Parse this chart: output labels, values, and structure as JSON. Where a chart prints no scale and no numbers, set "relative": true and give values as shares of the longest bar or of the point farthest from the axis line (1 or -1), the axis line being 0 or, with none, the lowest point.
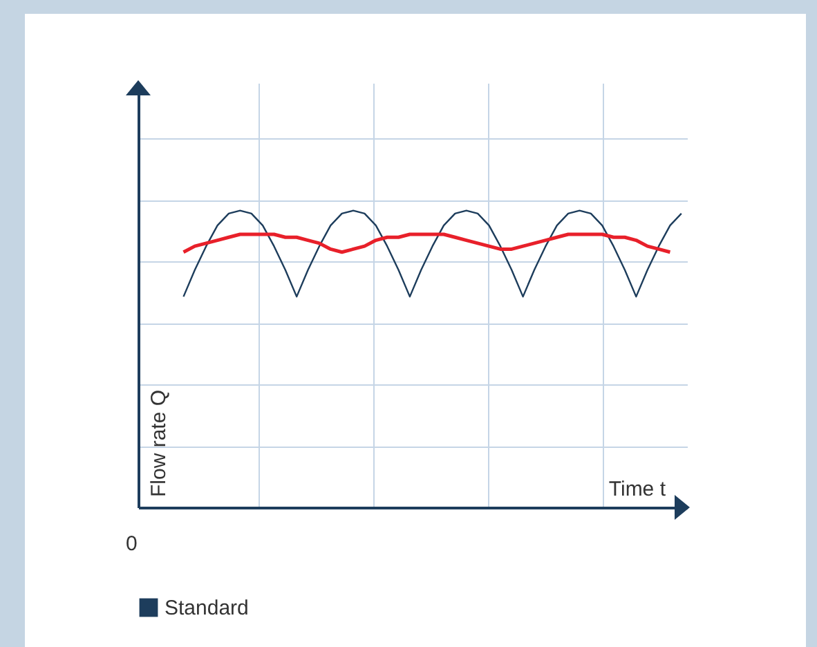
{
  "chart_data": {
    "type": "line",
    "relative": true,
    "xlabel": "Time t",
    "ylabel": "Flow rate Q",
    "annotations": [
      "0"
    ],
    "grid": true,
    "legend": "bottom left",
    "marker": "none",
    "categories": [
      null,
      null,
      null,
      null,
      null,
      null,
      null,
      null,
      null,
      null,
      null,
      null,
      null,
      null,
      null,
      null,
      null,
      null,
      null,
      null,
      null,
      null,
      null,
      null,
      null,
      null,
      null,
      null,
      null,
      null,
      null,
      null,
      null,
      null,
      null,
      null,
      null,
      null,
      null,
      null,
      null,
      null,
      null,
      null,
      null
    ],
    "series": [
      {
        "name": "Standard",
        "color": "#1d3d5c",
        "values": [
          0.71,
          0.8,
          0.88,
          0.95,
          0.99,
          1.0,
          0.99,
          0.95,
          0.88,
          0.8,
          0.71,
          0.8,
          0.88,
          0.95,
          0.99,
          1.0,
          0.99,
          0.95,
          0.88,
          0.8,
          0.71,
          0.8,
          0.88,
          0.95,
          0.99,
          1.0,
          0.99,
          0.95,
          0.88,
          0.8,
          0.71,
          0.8,
          0.88,
          0.95,
          0.99,
          1.0,
          0.99,
          0.95,
          0.88,
          0.8,
          0.71,
          0.8,
          0.88,
          0.95,
          0.99
        ]
      },
      {
        "color": "#e8202a",
        "values": [
          0.86,
          0.88,
          0.89,
          0.9,
          0.91,
          0.92,
          0.92,
          0.92,
          0.92,
          0.91,
          0.91,
          0.9,
          0.89,
          0.87,
          0.86,
          0.87,
          0.88,
          0.9,
          0.91,
          0.91,
          0.92,
          0.92,
          0.92,
          0.92,
          0.91,
          0.9,
          0.89,
          0.88,
          0.87,
          0.87,
          0.88,
          0.89,
          0.9,
          0.91,
          0.92,
          0.92,
          0.92,
          0.92,
          0.91,
          0.91,
          0.9,
          0.88,
          0.87,
          0.86,
          null
        ]
      }
    ]
  }
}
